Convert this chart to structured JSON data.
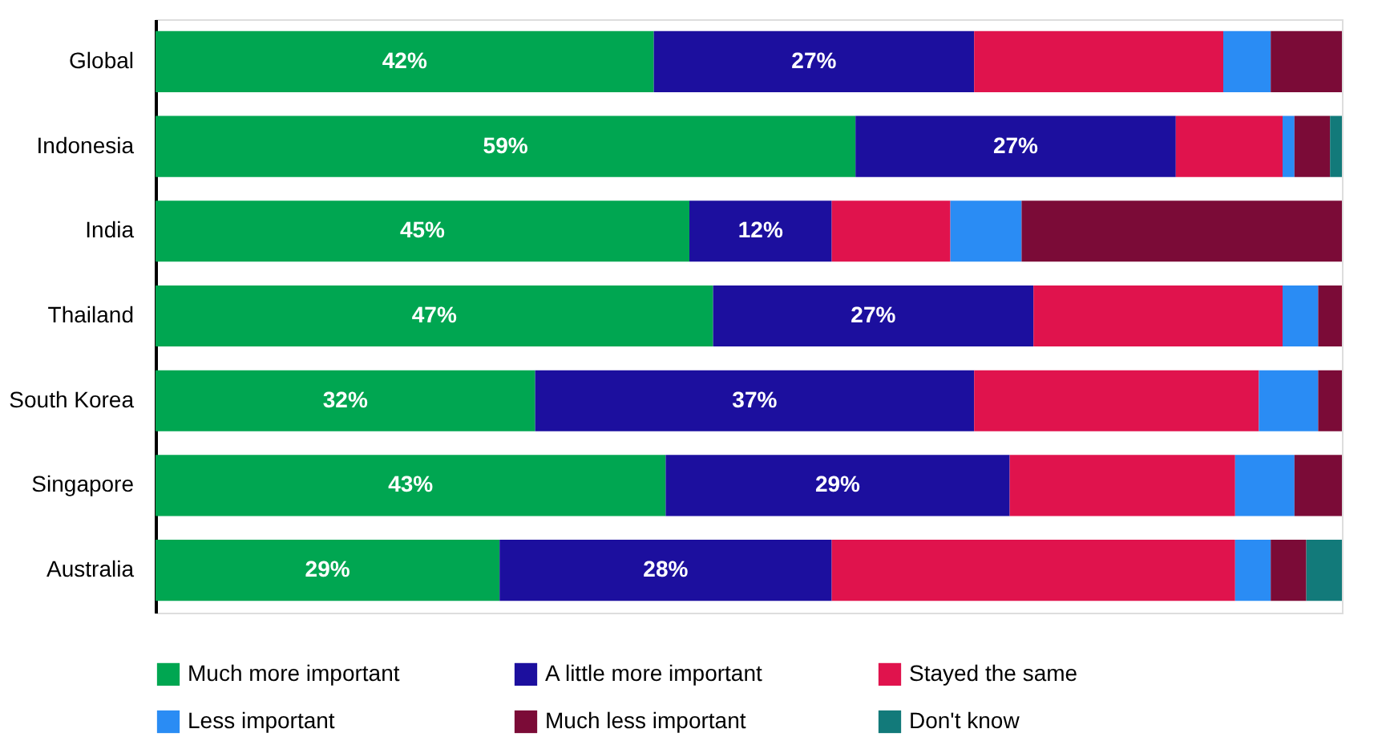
{
  "chart_data": {
    "type": "bar",
    "orientation": "horizontal",
    "stacked": true,
    "categories": [
      "Global",
      "Indonesia",
      "India",
      "Thailand",
      "South Korea",
      "Singapore",
      "Australia"
    ],
    "series": [
      {
        "name": "Much more important",
        "color": "#00a651",
        "values": [
          42,
          59,
          45,
          47,
          32,
          43,
          29
        ],
        "value_labels": [
          "42%",
          "59%",
          "45%",
          "47%",
          "32%",
          "43%",
          "29%"
        ]
      },
      {
        "name": "A little more important",
        "color": "#1c0f9e",
        "values": [
          27,
          27,
          12,
          27,
          37,
          29,
          28
        ],
        "value_labels": [
          "27%",
          "27%",
          "12%",
          "27%",
          "37%",
          "29%",
          "28%"
        ]
      },
      {
        "name": "Stayed the same",
        "color": "#e0134d",
        "values": [
          21,
          9,
          10,
          21,
          24,
          19,
          34
        ]
      },
      {
        "name": "Less important",
        "color": "#2a8cf4",
        "values": [
          4,
          1,
          6,
          3,
          5,
          5,
          3
        ]
      },
      {
        "name": "Much less important",
        "color": "#7b0b37",
        "values": [
          6,
          3,
          27,
          2,
          2,
          4,
          3
        ]
      },
      {
        "name": "Don't know",
        "color": "#127a7a",
        "values": [
          0,
          1,
          0,
          0,
          0,
          0,
          3
        ]
      }
    ],
    "xlim": [
      0,
      100
    ],
    "tick_labels": "y",
    "legend": "bottom"
  }
}
